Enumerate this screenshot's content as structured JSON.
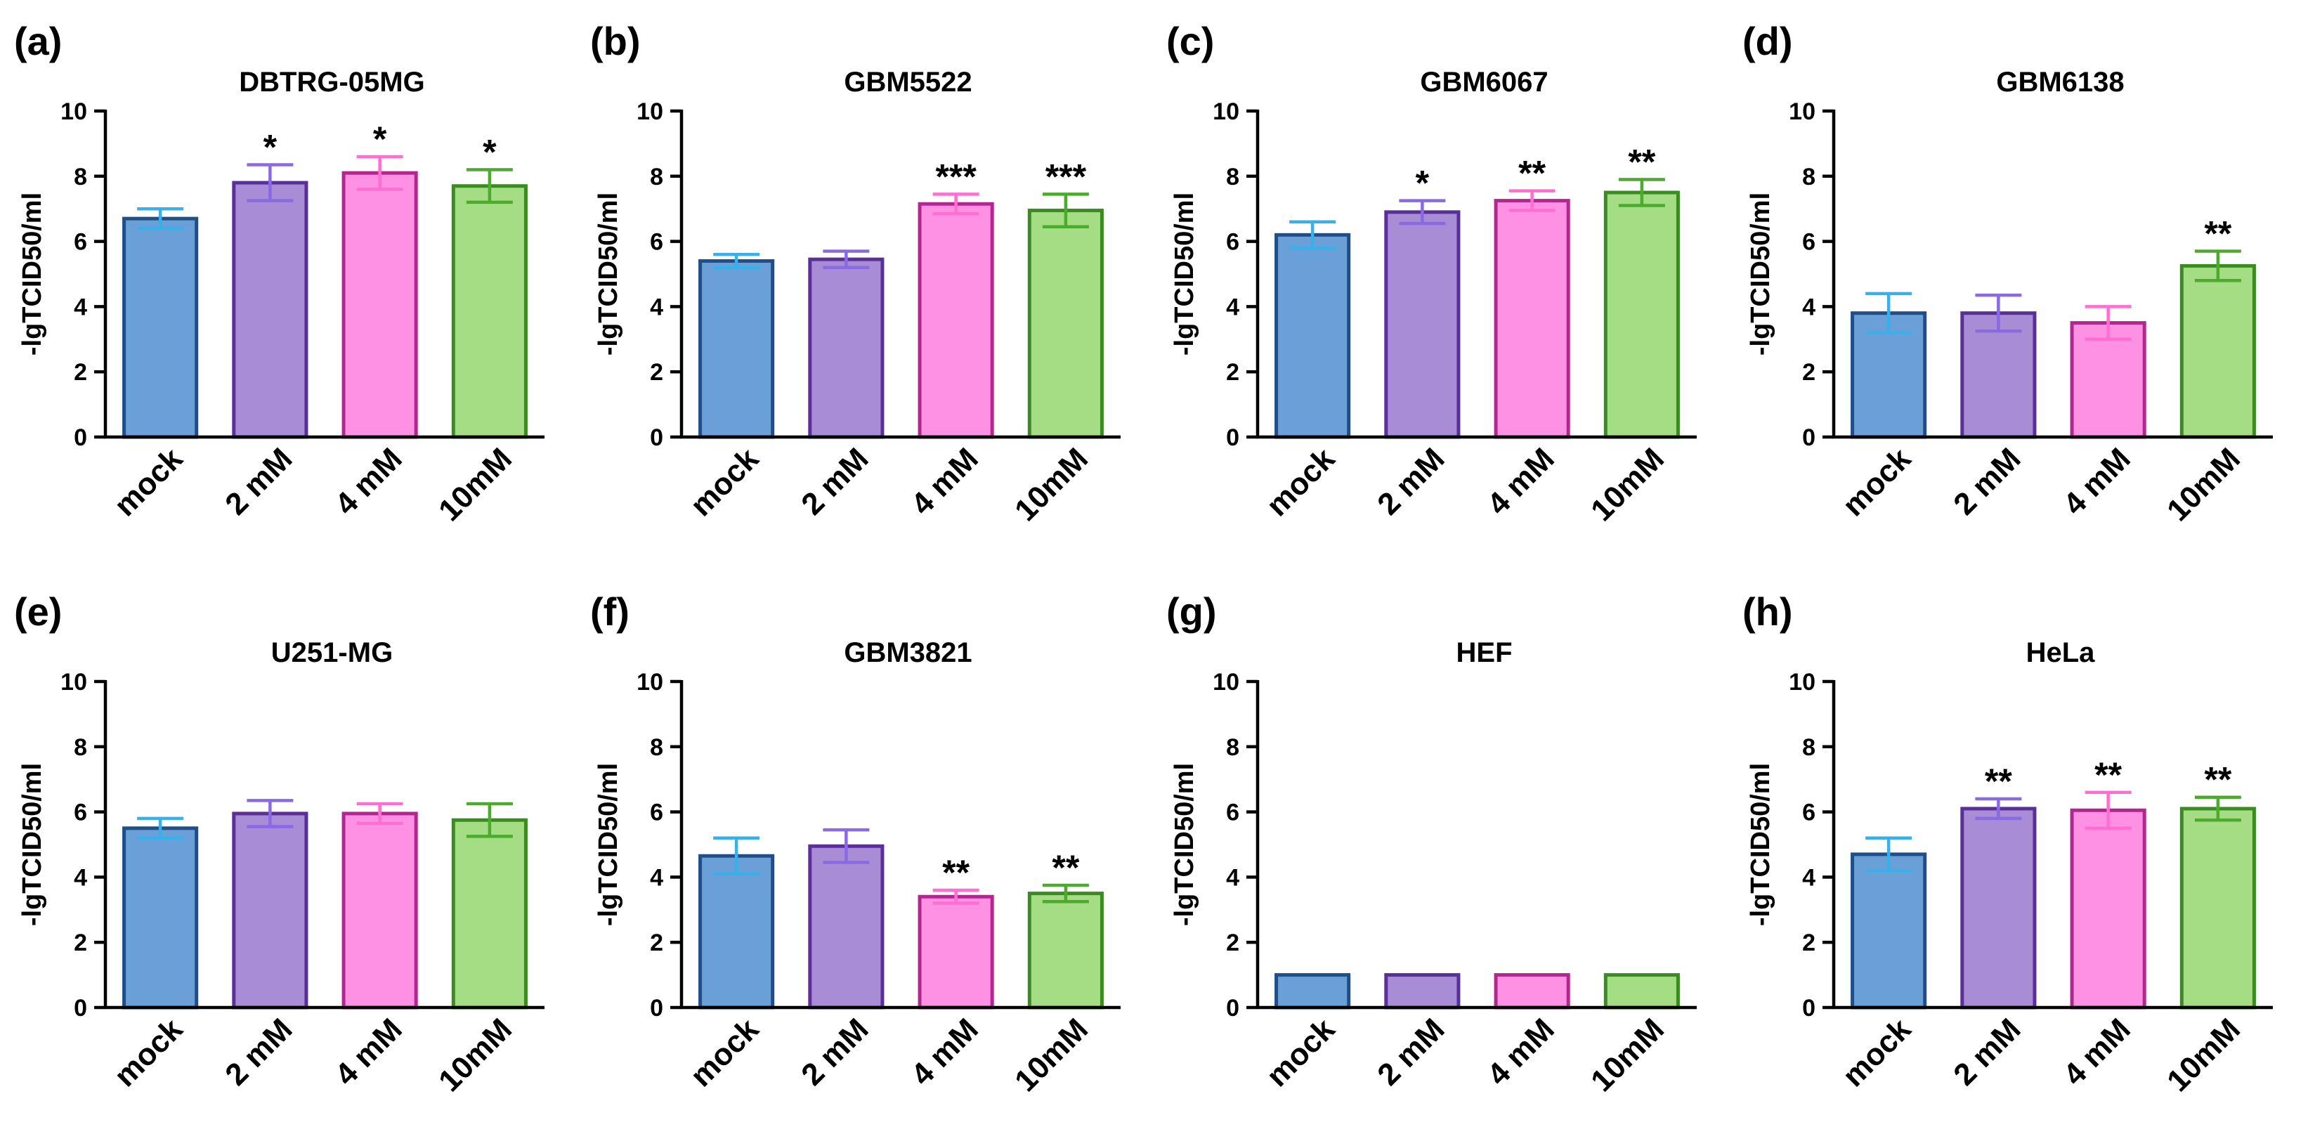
{
  "figure": {
    "ylabel": "-lgTCID50/ml"
  },
  "chart_data": [
    {
      "type": "bar",
      "panel": "(a)",
      "title": "DBTRG-05MG",
      "categories": [
        "mock",
        "2 mM",
        "4 mM",
        "10mM"
      ],
      "values": [
        6.7,
        7.8,
        8.1,
        7.7
      ],
      "errors": [
        0.3,
        0.55,
        0.5,
        0.5
      ],
      "significance": [
        "",
        "*",
        "*",
        "*"
      ],
      "ylabel": "-lgTCID50/ml",
      "ylim": [
        0,
        10
      ],
      "yticks": [
        "0",
        "2",
        "4",
        "6",
        "8",
        "10"
      ]
    },
    {
      "type": "bar",
      "panel": "(b)",
      "title": "GBM5522",
      "categories": [
        "mock",
        "2 mM",
        "4 mM",
        "10mM"
      ],
      "values": [
        5.4,
        5.45,
        7.15,
        6.95
      ],
      "errors": [
        0.2,
        0.25,
        0.3,
        0.5
      ],
      "significance": [
        "",
        "",
        "***",
        "***"
      ],
      "ylabel": "-lgTCID50/ml",
      "ylim": [
        0,
        10
      ],
      "yticks": [
        "0",
        "2",
        "4",
        "6",
        "8",
        "10"
      ]
    },
    {
      "type": "bar",
      "panel": "(c)",
      "title": "GBM6067",
      "categories": [
        "mock",
        "2 mM",
        "4 mM",
        "10mM"
      ],
      "values": [
        6.2,
        6.9,
        7.25,
        7.5
      ],
      "errors": [
        0.4,
        0.35,
        0.3,
        0.4
      ],
      "significance": [
        "",
        "*",
        "**",
        "**"
      ],
      "ylabel": "-lgTCID50/ml",
      "ylim": [
        0,
        10
      ],
      "yticks": [
        "0",
        "2",
        "4",
        "6",
        "8",
        "10"
      ]
    },
    {
      "type": "bar",
      "panel": "(d)",
      "title": "GBM6138",
      "categories": [
        "mock",
        "2 mM",
        "4 mM",
        "10mM"
      ],
      "values": [
        3.8,
        3.8,
        3.5,
        5.25
      ],
      "errors": [
        0.6,
        0.55,
        0.5,
        0.45
      ],
      "significance": [
        "",
        "",
        "",
        "**"
      ],
      "ylabel": "-lgTCID50/ml",
      "ylim": [
        0,
        10
      ],
      "yticks": [
        "0",
        "2",
        "4",
        "6",
        "8",
        "10"
      ]
    },
    {
      "type": "bar",
      "panel": "(e)",
      "title": "U251-MG",
      "categories": [
        "mock",
        "2 mM",
        "4 mM",
        "10mM"
      ],
      "values": [
        5.5,
        5.95,
        5.95,
        5.75
      ],
      "errors": [
        0.3,
        0.4,
        0.3,
        0.5
      ],
      "significance": [
        "",
        "",
        "",
        ""
      ],
      "ylabel": "-lgTCID50/ml",
      "ylim": [
        0,
        10
      ],
      "yticks": [
        "0",
        "2",
        "4",
        "6",
        "8",
        "10"
      ]
    },
    {
      "type": "bar",
      "panel": "(f)",
      "title": "GBM3821",
      "categories": [
        "mock",
        "2 mM",
        "4 mM",
        "10mM"
      ],
      "values": [
        4.65,
        4.95,
        3.4,
        3.5
      ],
      "errors": [
        0.55,
        0.5,
        0.2,
        0.25
      ],
      "significance": [
        "",
        "",
        "**",
        "**"
      ],
      "ylabel": "-lgTCID50/ml",
      "ylim": [
        0,
        10
      ],
      "yticks": [
        "0",
        "2",
        "4",
        "6",
        "8",
        "10"
      ]
    },
    {
      "type": "bar",
      "panel": "(g)",
      "title": "HEF",
      "categories": [
        "mock",
        "2 mM",
        "4 mM",
        "10mM"
      ],
      "values": [
        1.0,
        1.0,
        1.0,
        1.0
      ],
      "errors": [
        0,
        0,
        0,
        0
      ],
      "significance": [
        "",
        "",
        "",
        ""
      ],
      "ylabel": "-lgTCID50/ml",
      "ylim": [
        0,
        10
      ],
      "yticks": [
        "0",
        "2",
        "4",
        "6",
        "8",
        "10"
      ]
    },
    {
      "type": "bar",
      "panel": "(h)",
      "title": "HeLa",
      "categories": [
        "mock",
        "2 mM",
        "4 mM",
        "10mM"
      ],
      "values": [
        4.7,
        6.1,
        6.05,
        6.1
      ],
      "errors": [
        0.5,
        0.3,
        0.55,
        0.35
      ],
      "significance": [
        "",
        "**",
        "**",
        "**"
      ],
      "ylabel": "-lgTCID50/ml",
      "ylim": [
        0,
        10
      ],
      "yticks": [
        "0",
        "2",
        "4",
        "6",
        "8",
        "10"
      ]
    }
  ],
  "colors": {
    "bar_fills": [
      "#6a9fd8",
      "#a88cd6",
      "#ff91e5",
      "#a5dd85"
    ],
    "bar_edges": [
      "#1f4f86",
      "#5a2f98",
      "#b4268f",
      "#3a8c22"
    ],
    "error_colors": [
      "#3ab0ea",
      "#8a6ae0",
      "#ff6fd2",
      "#4cab2c"
    ],
    "axis": "#000000"
  }
}
